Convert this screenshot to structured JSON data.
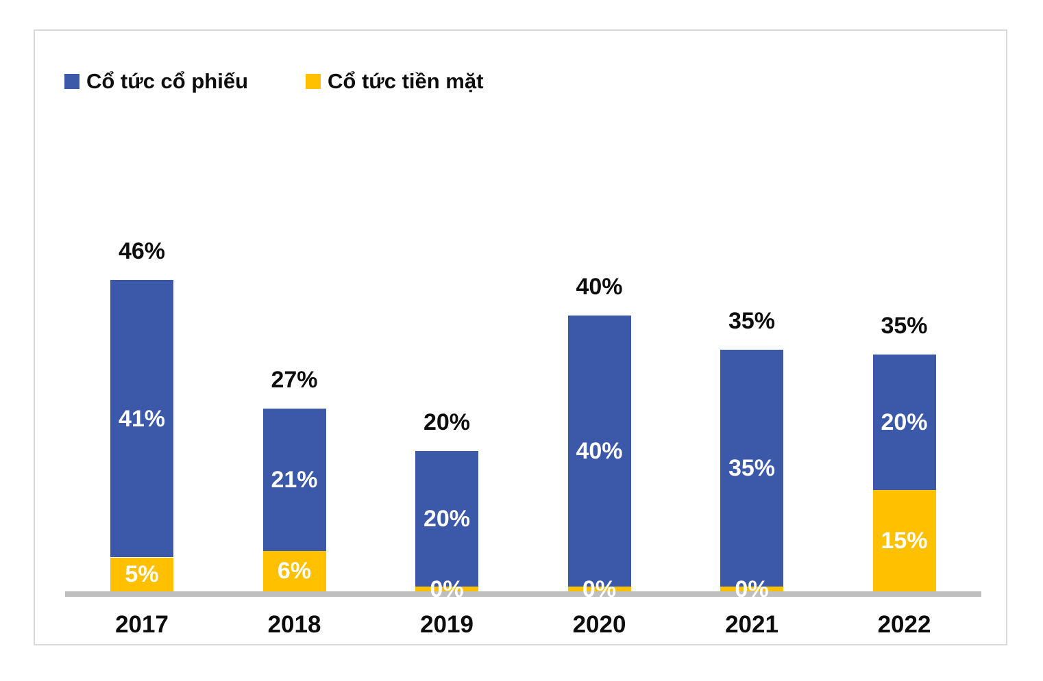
{
  "chart_data": {
    "type": "bar",
    "stacked": true,
    "title": "",
    "xlabel": "",
    "ylabel": "",
    "categories": [
      "2017",
      "2018",
      "2019",
      "2020",
      "2021",
      "2022"
    ],
    "series": [
      {
        "name": "Cổ tức cổ phiếu",
        "color": "#3c58a8",
        "values": [
          41,
          21,
          20,
          40,
          35,
          20
        ],
        "labels": [
          "41%",
          "21%",
          "20%",
          "40%",
          "35%",
          "20%"
        ]
      },
      {
        "name": "Cổ tức tiền mặt",
        "color": "#ffc000",
        "values": [
          5,
          6,
          0,
          0,
          0,
          15
        ],
        "labels": [
          "5%",
          "6%",
          "0%",
          "0%",
          "0%",
          "15%"
        ]
      }
    ],
    "stack_order_bottom_to_top": [
      "Cổ tức tiền mặt",
      "Cổ tức cổ phiếu"
    ],
    "totals": [
      46,
      27,
      20,
      40,
      35,
      35
    ],
    "total_labels": [
      "46%",
      "27%",
      "20%",
      "40%",
      "35%",
      "35%"
    ],
    "value_suffix": "%",
    "ylim": [
      0,
      50
    ],
    "grid": false,
    "y_axis_shown": false,
    "legend_position": "top-left",
    "axis_line_color": "#bfbfbf",
    "frame_border_color": "#d9d9d9",
    "background_color": "#ffffff",
    "total_label_color": "#0d0d0d",
    "segment_label_color": "#ffffff"
  }
}
